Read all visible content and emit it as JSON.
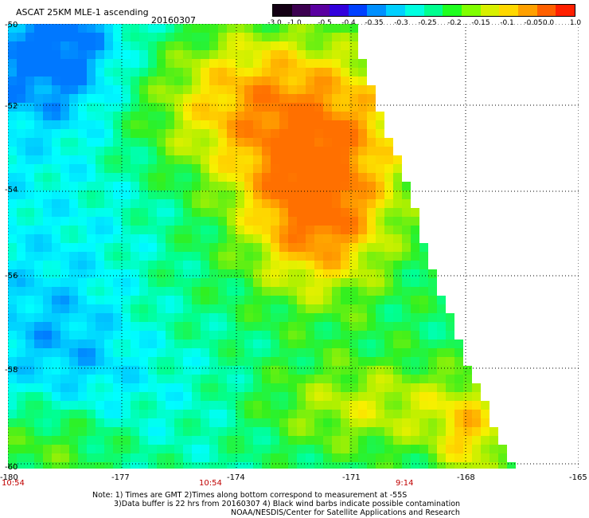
{
  "header": {
    "title": "ASCAT 25KM MLE-1 ascending",
    "date": "20160307"
  },
  "colorbar": {
    "labels": [
      "-3.0",
      "-1.0",
      "-0.5",
      "-0.4",
      "-0.35",
      "-0.3",
      "-0.25",
      "-0.2",
      "-0.15",
      "-0.1",
      "-0.05",
      "0.0",
      "1.0"
    ],
    "colors": [
      "#140014",
      "#3c0050",
      "#5a00a0",
      "#3200dc",
      "#0040ff",
      "#0090ff",
      "#00d0ff",
      "#00ffe0",
      "#00ff90",
      "#20ff20",
      "#80ff00",
      "#d8f000",
      "#ffd800",
      "#ffa000",
      "#ff6000",
      "#ff2000"
    ]
  },
  "axes": {
    "lat_labels": [
      "-50",
      "-52",
      "-54",
      "-56",
      "-58",
      "-60"
    ],
    "lon_labels": [
      "-180",
      "-177",
      "-174",
      "-171",
      "-168",
      "-165"
    ],
    "time_labels": [
      "10:54",
      "10:54",
      "9:14"
    ],
    "time_color": "#c00000"
  },
  "notes": {
    "line1": "Note: 1) Times are GMT 2)Times along bottom correspond to measurement at -55S",
    "line2": "3)Data buffer is 22 hrs from 20160307 4) Black wind barbs indicate possible contamination",
    "line3": "NOAA/NESDIS/Center for Satellite Applications and Research"
  }
}
